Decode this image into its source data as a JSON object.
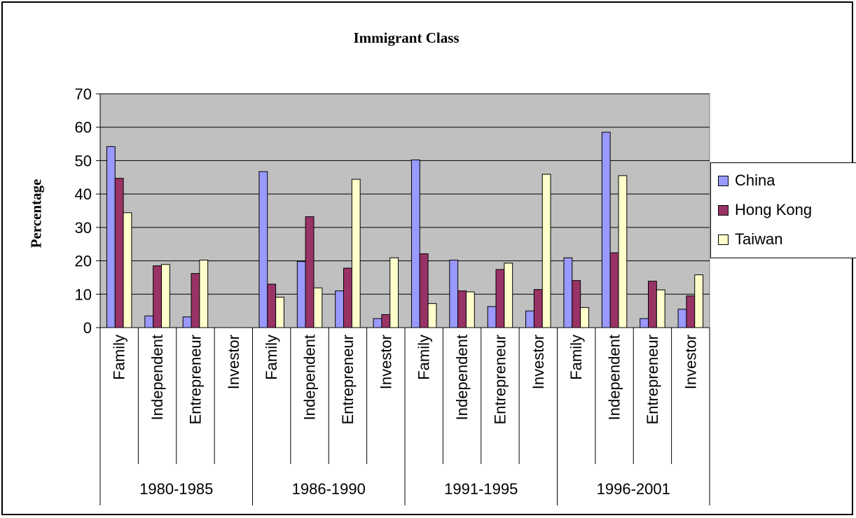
{
  "chart_data": {
    "type": "bar",
    "title": "Immigrant Class",
    "ylabel": "Percentage",
    "xlabel": "",
    "ylim": [
      0,
      70
    ],
    "yticks": [
      0,
      10,
      20,
      30,
      40,
      50,
      60,
      70
    ],
    "grid": true,
    "legend_position": "right",
    "groups": [
      {
        "label": "1980-1985",
        "categories": [
          "Family",
          "Independent",
          "Entrepreneur",
          "Investor"
        ]
      },
      {
        "label": "1986-1990",
        "categories": [
          "Family",
          "Independent",
          "Entrepreneur",
          "Investor"
        ]
      },
      {
        "label": "1991-1995",
        "categories": [
          "Family",
          "Independent",
          "Entrepreneur",
          "Investor"
        ]
      },
      {
        "label": "1996-2001",
        "categories": [
          "Family",
          "Independent",
          "Entrepreneur",
          "Investor"
        ]
      }
    ],
    "series": [
      {
        "name": "China",
        "color": "#9999ff",
        "values": [
          54.2,
          3.5,
          3.2,
          null,
          46.7,
          19.8,
          11.0,
          2.7,
          50.2,
          20.2,
          6.3,
          5.0,
          20.9,
          58.5,
          2.7,
          5.5
        ]
      },
      {
        "name": "Hong Kong",
        "color": "#993366",
        "values": [
          44.7,
          18.5,
          16.2,
          null,
          13.0,
          33.2,
          17.8,
          3.9,
          22.1,
          11.0,
          17.4,
          11.4,
          14.1,
          22.4,
          13.9,
          9.5
        ]
      },
      {
        "name": "Taiwan",
        "color": "#ffffcc",
        "values": [
          34.4,
          18.9,
          20.2,
          null,
          9.1,
          11.9,
          44.4,
          20.9,
          7.2,
          10.7,
          19.3,
          45.9,
          6.0,
          45.5,
          11.3,
          15.8
        ]
      }
    ],
    "plot_background": "#c0c0c0"
  }
}
